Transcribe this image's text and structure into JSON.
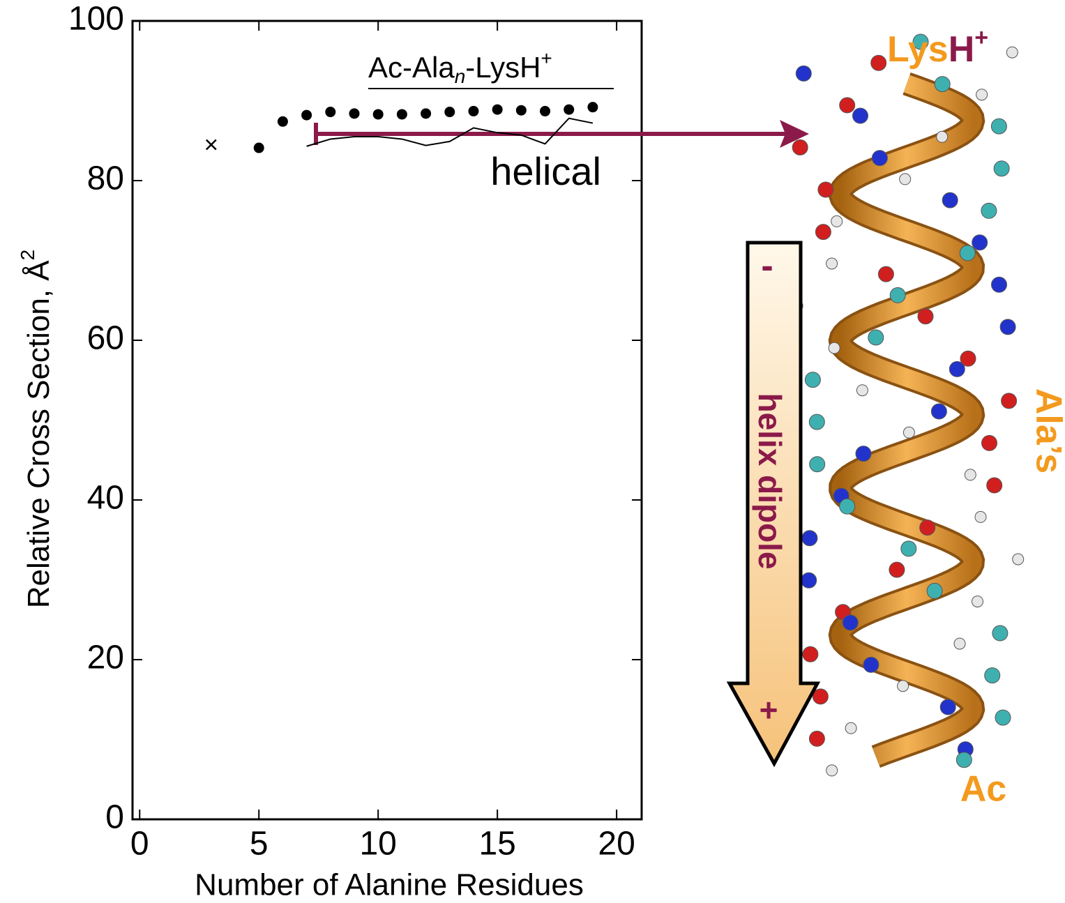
{
  "chart_data": {
    "type": "scatter",
    "xlabel": "Number of  Alanine Residues",
    "ylabel": {
      "text": "Relative Cross Section, Å",
      "sup": "2"
    },
    "xlim": [
      -0.3,
      21.05
    ],
    "ylim": [
      0,
      100
    ],
    "xticks": [
      0,
      5,
      10,
      15,
      20
    ],
    "yticks": [
      0,
      20,
      40,
      60,
      80,
      100
    ],
    "series": [
      {
        "type": "scatter",
        "marker": "dot",
        "color": "#000000",
        "x": [
          5,
          6,
          7,
          8,
          9,
          10,
          11,
          12,
          13,
          14,
          15,
          16,
          17,
          18,
          19
        ],
        "values": [
          84.1,
          87.4,
          88.2,
          88.6,
          88.4,
          88.3,
          88.3,
          88.4,
          88.6,
          88.7,
          88.9,
          88.8,
          88.7,
          88.9,
          89.2
        ]
      },
      {
        "type": "line",
        "color": "#000000",
        "x": [
          7,
          8,
          9,
          10,
          11,
          12,
          13,
          14,
          15,
          16,
          17,
          18,
          19
        ],
        "values": [
          84.3,
          85.2,
          85.5,
          85.5,
          85.2,
          84.4,
          84.9,
          86.6,
          86.0,
          85.7,
          84.6,
          87.8,
          87.2
        ]
      },
      {
        "type": "scatter",
        "marker": "cross",
        "color": "#000000",
        "x": [
          3
        ],
        "values": [
          84.5
        ]
      }
    ],
    "annotations": {
      "formula": {
        "base": "Ac-Ala",
        "sub": "n",
        "rest": "-LysH",
        "sup": "+"
      },
      "helical": "helical",
      "lys": {
        "text": "Lys",
        "h": "H",
        "sup": "+"
      },
      "ala": "Ala’s",
      "ac": "Ac",
      "dipole": {
        "minus": "-",
        "label": "helix dipole",
        "plus": "+"
      }
    }
  }
}
